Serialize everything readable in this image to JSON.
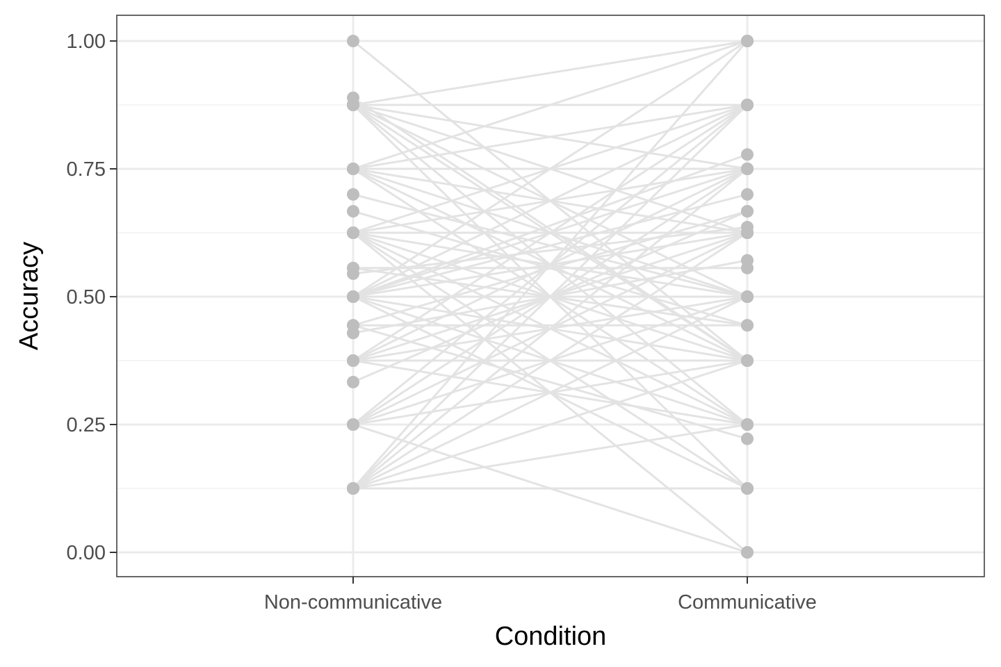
{
  "chart_data": {
    "type": "scatter",
    "subtype": "paired-points-with-connecting-lines",
    "title": "",
    "xlabel": "Condition",
    "ylabel": "Accuracy",
    "categories": [
      "Non-communicative",
      "Communicative"
    ],
    "ylim": [
      -0.05,
      1.05
    ],
    "y_ticks": [
      0.0,
      0.25,
      0.5,
      0.75,
      1.0
    ],
    "y_tick_labels": [
      "0.00",
      "0.25",
      "0.50",
      "0.75",
      "1.00"
    ],
    "grid": true,
    "legend": "none",
    "colors": {
      "line": "#e3e3e3",
      "point": "#bebebe",
      "panel_border": "#333333",
      "grid": "#ebebeb"
    },
    "pairs": [
      [
        1.0,
        0.375
      ],
      [
        0.889,
        0.375
      ],
      [
        0.875,
        1.0
      ],
      [
        0.875,
        0.875
      ],
      [
        0.875,
        0.625
      ],
      [
        0.875,
        0.5
      ],
      [
        0.875,
        0.375
      ],
      [
        0.875,
        0.25
      ],
      [
        0.875,
        0.125
      ],
      [
        0.875,
        0.75
      ],
      [
        0.75,
        1.0
      ],
      [
        0.75,
        0.75
      ],
      [
        0.75,
        0.625
      ],
      [
        0.75,
        0.5
      ],
      [
        0.75,
        0.375
      ],
      [
        0.75,
        0.25
      ],
      [
        0.75,
        0.875
      ],
      [
        0.7,
        0.5
      ],
      [
        0.667,
        0.444
      ],
      [
        0.625,
        0.875
      ],
      [
        0.625,
        0.75
      ],
      [
        0.625,
        0.625
      ],
      [
        0.625,
        0.5
      ],
      [
        0.625,
        0.375
      ],
      [
        0.625,
        0.25
      ],
      [
        0.625,
        0.125
      ],
      [
        0.625,
        0.0
      ],
      [
        0.556,
        0.556
      ],
      [
        0.556,
        0.444
      ],
      [
        0.545,
        0.636
      ],
      [
        0.5,
        1.0
      ],
      [
        0.5,
        0.875
      ],
      [
        0.5,
        0.778
      ],
      [
        0.5,
        0.75
      ],
      [
        0.5,
        0.7
      ],
      [
        0.5,
        0.625
      ],
      [
        0.5,
        0.5
      ],
      [
        0.5,
        0.375
      ],
      [
        0.5,
        0.25
      ],
      [
        0.5,
        0.125
      ],
      [
        0.444,
        0.667
      ],
      [
        0.444,
        0.444
      ],
      [
        0.444,
        0.222
      ],
      [
        0.429,
        0.571
      ],
      [
        0.375,
        0.875
      ],
      [
        0.375,
        0.75
      ],
      [
        0.375,
        0.625
      ],
      [
        0.375,
        0.5
      ],
      [
        0.375,
        0.375
      ],
      [
        0.375,
        0.25
      ],
      [
        0.333,
        0.667
      ],
      [
        0.25,
        0.875
      ],
      [
        0.25,
        0.75
      ],
      [
        0.25,
        0.625
      ],
      [
        0.25,
        0.5
      ],
      [
        0.25,
        0.375
      ],
      [
        0.25,
        0.0
      ],
      [
        0.125,
        1.0
      ],
      [
        0.125,
        0.875
      ],
      [
        0.125,
        0.75
      ],
      [
        0.125,
        0.625
      ],
      [
        0.125,
        0.5
      ],
      [
        0.125,
        0.375
      ],
      [
        0.125,
        0.25
      ],
      [
        0.125,
        0.125
      ]
    ]
  }
}
